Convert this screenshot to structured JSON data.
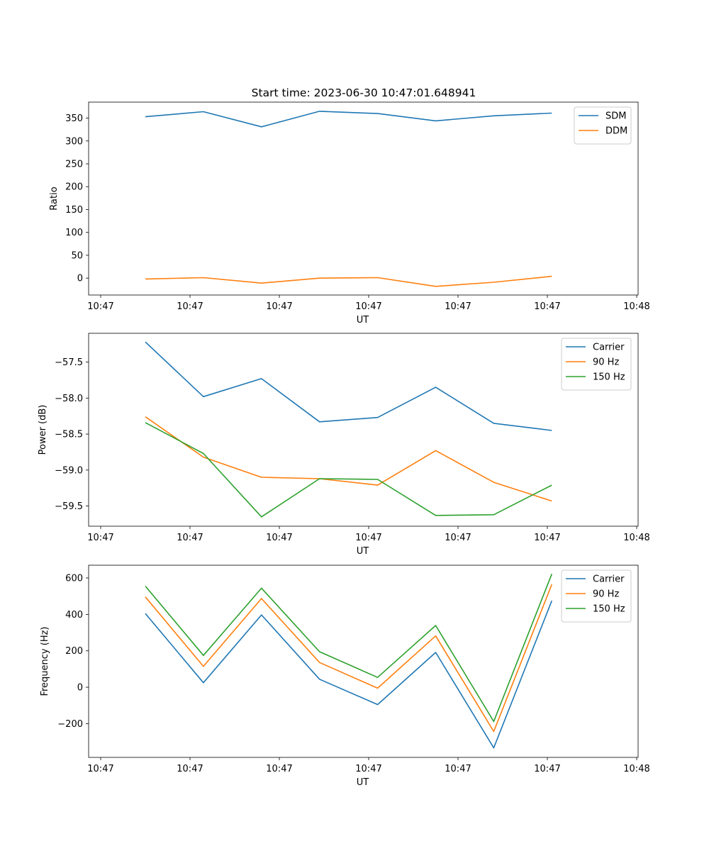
{
  "figure": {
    "title": "Start time: 2023-06-30 10:47:01.648941"
  },
  "chart_data": [
    {
      "type": "line",
      "title": "Start time: 2023-06-30 10:47:01.648941",
      "xlabel": "UT",
      "ylabel": "Ratio",
      "xlim": [
        0,
        6
      ],
      "ylim": [
        -37,
        385
      ],
      "x": [
        0.5,
        1.15,
        1.8,
        2.45,
        3.1,
        3.75,
        4.4,
        5.05
      ],
      "x_ticks": [
        0,
        1,
        2,
        3,
        4,
        5,
        6
      ],
      "x_tick_labels": [
        "10:47",
        "10:47",
        "10:47",
        "10:47",
        "10:47",
        "10:47",
        "10:48"
      ],
      "y_ticks": [
        0,
        50,
        100,
        150,
        200,
        250,
        300,
        350
      ],
      "y_tick_labels": [
        "0",
        "50",
        "100",
        "150",
        "200",
        "250",
        "300",
        "350"
      ],
      "legend_position": "top-right",
      "series": [
        {
          "name": "SDM",
          "color": "#1f77b4",
          "values": [
            353,
            364,
            331,
            365,
            360,
            344,
            355,
            361
          ]
        },
        {
          "name": "DDM",
          "color": "#ff7f0e",
          "values": [
            -2,
            1,
            -11,
            0,
            1,
            -18,
            -9,
            4
          ]
        }
      ]
    },
    {
      "type": "line",
      "xlabel": "UT",
      "ylabel": "Power (dB)",
      "xlim": [
        0,
        6
      ],
      "ylim": [
        -59.78,
        -57.1
      ],
      "x": [
        0.5,
        1.15,
        1.8,
        2.45,
        3.1,
        3.75,
        4.4,
        5.05
      ],
      "x_ticks": [
        0,
        1,
        2,
        3,
        4,
        5,
        6
      ],
      "x_tick_labels": [
        "10:47",
        "10:47",
        "10:47",
        "10:47",
        "10:47",
        "10:47",
        "10:48"
      ],
      "y_ticks": [
        -59.5,
        -59.0,
        -58.5,
        -58.0,
        -57.5
      ],
      "y_tick_labels": [
        "−59.5",
        "−59.0",
        "−58.5",
        "−58.0",
        "−57.5"
      ],
      "legend_position": "top-right",
      "series": [
        {
          "name": "Carrier",
          "color": "#1f77b4",
          "values": [
            -57.22,
            -57.98,
            -57.73,
            -58.33,
            -58.27,
            -57.85,
            -58.35,
            -58.45
          ]
        },
        {
          "name": "90 Hz",
          "color": "#ff7f0e",
          "values": [
            -58.26,
            -58.82,
            -59.1,
            -59.12,
            -59.21,
            -58.73,
            -59.17,
            -59.43
          ]
        },
        {
          "name": "150 Hz",
          "color": "#2ca02c",
          "values": [
            -58.34,
            -58.77,
            -59.65,
            -59.12,
            -59.13,
            -59.63,
            -59.62,
            -59.21
          ]
        }
      ]
    },
    {
      "type": "line",
      "xlabel": "UT",
      "ylabel": "Frequency (Hz)",
      "xlim": [
        0,
        6
      ],
      "ylim": [
        -385,
        670
      ],
      "x": [
        0.5,
        1.15,
        1.8,
        2.45,
        3.1,
        3.75,
        4.4,
        5.05
      ],
      "x_ticks": [
        0,
        1,
        2,
        3,
        4,
        5,
        6
      ],
      "x_tick_labels": [
        "10:47",
        "10:47",
        "10:47",
        "10:47",
        "10:47",
        "10:47",
        "10:48"
      ],
      "y_ticks": [
        -200,
        0,
        200,
        400,
        600
      ],
      "y_tick_labels": [
        "−200",
        "0",
        "200",
        "400",
        "600"
      ],
      "legend_position": "top-right",
      "series": [
        {
          "name": "Carrier",
          "color": "#1f77b4",
          "values": [
            405,
            25,
            397,
            44,
            -95,
            191,
            -333,
            475
          ]
        },
        {
          "name": "90 Hz",
          "color": "#ff7f0e",
          "values": [
            496,
            115,
            487,
            136,
            -5,
            282,
            -243,
            565
          ]
        },
        {
          "name": "150 Hz",
          "color": "#2ca02c",
          "values": [
            555,
            175,
            544,
            195,
            54,
            339,
            -188,
            622
          ]
        }
      ]
    }
  ]
}
